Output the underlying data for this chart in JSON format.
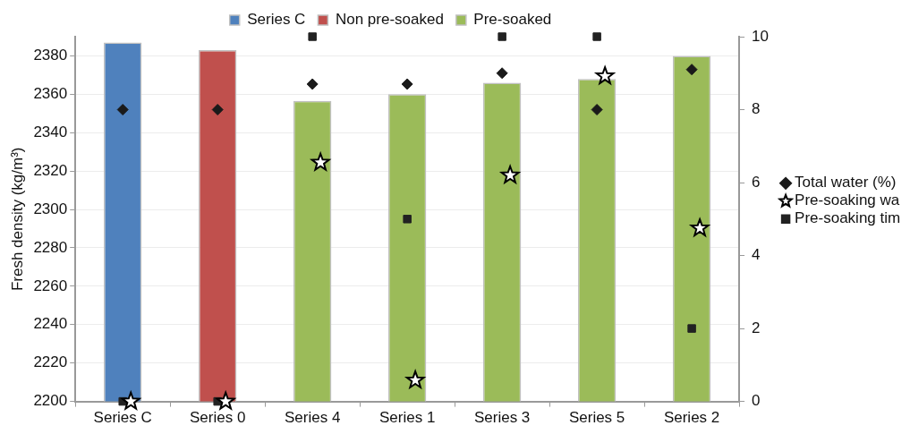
{
  "chart_data": {
    "type": "bar",
    "ylabel": "Fresh density (kg/m³)",
    "categories": [
      "Series C",
      "Series 0",
      "Series 4",
      "Series 1",
      "Series 3",
      "Series 5",
      "Series 2"
    ],
    "ylim": [
      2200,
      2390
    ],
    "yticks": [
      2200,
      2220,
      2240,
      2260,
      2280,
      2300,
      2320,
      2340,
      2360,
      2380
    ],
    "y2lim": [
      0,
      10
    ],
    "y2ticks": [
      0,
      2,
      4,
      6,
      8,
      10
    ],
    "grid": "y",
    "legend": "top",
    "series": [
      {
        "name": "Series C",
        "color": "#4f81bd",
        "values": [
          2387,
          null,
          null,
          null,
          null,
          null,
          null
        ]
      },
      {
        "name": "Non pre-soaked",
        "color": "#c0504d",
        "values": [
          null,
          2383,
          null,
          null,
          null,
          null,
          null
        ]
      },
      {
        "name": "Pre-soaked",
        "color": "#9bbb59",
        "values": [
          null,
          null,
          2356.5,
          2360,
          2366,
          2368,
          2380
        ]
      },
      {
        "name": "Total water (%)",
        "type": "scatter",
        "axis": "y2",
        "marker": "diamond",
        "color": "#1a1a1a",
        "x": [
          "Series C",
          "Series 0",
          "Series 4",
          "Series 1",
          "Series 3",
          "Series 5",
          "Series 2"
        ],
        "values": [
          8,
          8,
          8.7,
          8.7,
          9,
          8,
          9.1
        ]
      },
      {
        "name": "Pre-soaking wa",
        "type": "scatter",
        "axis": "y2",
        "marker": "star",
        "color": "#000000",
        "x": [
          "Series C",
          "Series 0",
          "Series 4",
          "Series 1",
          "Series 3",
          "Series 5",
          "Series 2"
        ],
        "values": [
          0,
          0,
          6.55,
          0.58,
          6.2,
          8.92,
          4.75
        ]
      },
      {
        "name": "Pre-soaking tim",
        "type": "scatter",
        "axis": "y2",
        "marker": "square",
        "color": "#222222",
        "x": [
          "Series C",
          "Series 0",
          "Series 4",
          "Series 1",
          "Series 3",
          "Series 5",
          "Series 2"
        ],
        "values": [
          0,
          0,
          10,
          5,
          10,
          10,
          2
        ]
      }
    ]
  }
}
